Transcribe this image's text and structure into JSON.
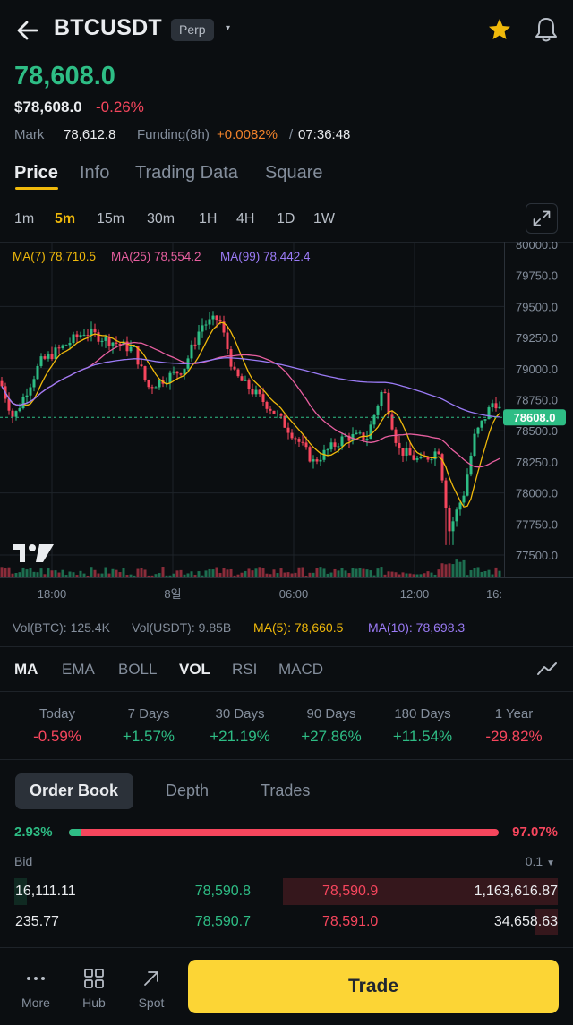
{
  "header": {
    "symbol": "BTCUSDT",
    "badge": "Perp",
    "caret": "▾"
  },
  "price": {
    "last": "78,608.0",
    "usd": "$78,608.0",
    "change": "-0.26%",
    "mark_label": "Mark",
    "mark_value": "78,612.8",
    "funding_label": "Funding(8h)",
    "funding_value": "+0.0082%",
    "funding_sep": "/",
    "countdown": "07:36:48"
  },
  "main_tabs": [
    "Price",
    "Info",
    "Trading Data",
    "Square"
  ],
  "intervals": [
    "1m",
    "5m",
    "15m",
    "30m",
    "1H",
    "4H",
    "1D",
    "1W"
  ],
  "active_interval": "5m",
  "chart_legend": {
    "ma7": "MA(7) 78,710.5",
    "ma25": "MA(25) 78,554.2",
    "ma99": "MA(99) 78,442.4"
  },
  "chart_data": {
    "type": "candlestick",
    "y_ticks": [
      "80000.0",
      "79750.0",
      "79500.0",
      "79250.0",
      "79000.0",
      "78750.0",
      "78500.0",
      "78250.0",
      "78000.0",
      "77750.0",
      "77500.0"
    ],
    "ylim": [
      77500,
      80000
    ],
    "x_ticks": [
      "18:00",
      "8일",
      "06:00",
      "12:00",
      "16:"
    ],
    "last_price_tag": "78608.0",
    "last_price": 78608,
    "colors": {
      "up": "#2ebd85",
      "down": "#f6465d",
      "ma7": "#f0b90b",
      "ma25": "#e85fa0",
      "ma99": "#9b7bf6"
    }
  },
  "volume": {
    "vol_btc": "Vol(BTC): 125.4K",
    "vol_usdt": "Vol(USDT): 9.85B",
    "ma5": "MA(5): 78,660.5",
    "ma10": "MA(10): 78,698.3"
  },
  "indicator_tabs": [
    "MA",
    "EMA",
    "BOLL",
    "VOL",
    "RSI",
    "MACD"
  ],
  "performance": [
    {
      "label": "Today",
      "value": "-0.59%",
      "dir": "down"
    },
    {
      "label": "7 Days",
      "value": "+1.57%",
      "dir": "up"
    },
    {
      "label": "30 Days",
      "value": "+21.19%",
      "dir": "up"
    },
    {
      "label": "90 Days",
      "value": "+27.86%",
      "dir": "up"
    },
    {
      "label": "180 Days",
      "value": "+11.54%",
      "dir": "up"
    },
    {
      "label": "1 Year",
      "value": "-29.82%",
      "dir": "down"
    }
  ],
  "order_book": {
    "tabs": [
      "Order Book",
      "Depth",
      "Trades"
    ],
    "bid_ratio": "2.93%",
    "ask_ratio": "97.07%",
    "bid_fraction": 0.0293,
    "bid_label": "Bid",
    "depth": "0.1",
    "rows": [
      {
        "bid_qty": "16,111.11",
        "bid_price": "78,590.8",
        "ask_price": "78,590.9",
        "ask_qty": "1,163,616.87"
      },
      {
        "bid_qty": "235.77",
        "bid_price": "78,590.7",
        "ask_price": "78,591.0",
        "ask_qty": "34,658.63"
      }
    ]
  },
  "bottom_nav": {
    "more": "More",
    "hub": "Hub",
    "spot": "Spot",
    "trade": "Trade"
  }
}
